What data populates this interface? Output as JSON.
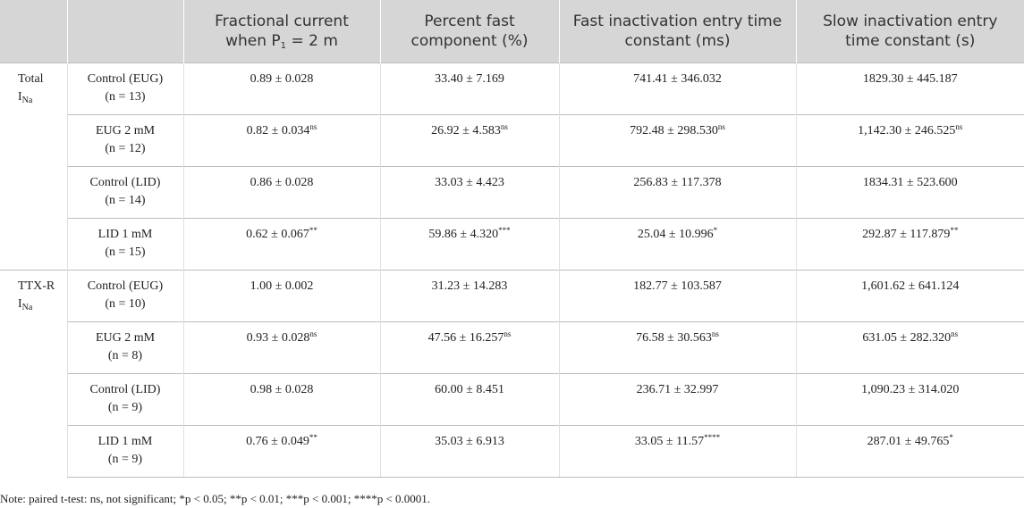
{
  "header": {
    "columns": [
      {
        "text": "Fractional current when P",
        "sub": "1",
        "after": " = 2 m"
      },
      {
        "text": "Percent fast component (%)"
      },
      {
        "text": "Fast inactivation entry time constant (ms)"
      },
      {
        "text": "Slow inactivation entry time constant (s)"
      }
    ]
  },
  "groups": [
    {
      "label": {
        "text": "Total I",
        "sub": "Na"
      },
      "rows": [
        {
          "name": "Control (EUG)",
          "n": "(n = 13)",
          "cells": [
            {
              "text": "0.89 ± 0.028"
            },
            {
              "text": "33.40 ± 7.169"
            },
            {
              "text": "741.41 ± 346.032"
            },
            {
              "text": "1829.30 ± 445.187"
            }
          ]
        },
        {
          "name": "EUG 2 mM",
          "n": "(n = 12)",
          "cells": [
            {
              "text": "0.82 ± 0.034",
              "sup": "ns"
            },
            {
              "text": "26.92 ± 4.583",
              "sup": "ns"
            },
            {
              "text": "792.48 ± 298.530",
              "sup": "ns"
            },
            {
              "text": "1,142.30 ± 246.525",
              "sup": "ns"
            }
          ]
        },
        {
          "name": "Control (LID)",
          "n": "(n = 14)",
          "cells": [
            {
              "text": "0.86 ± 0.028"
            },
            {
              "text": "33.03 ± 4.423"
            },
            {
              "text": "256.83 ± 117.378"
            },
            {
              "text": "1834.31 ± 523.600"
            }
          ]
        },
        {
          "name": "LID 1 mM",
          "n": "(n = 15)",
          "cells": [
            {
              "text": "0.62 ± 0.067",
              "sup": "**"
            },
            {
              "text": "59.86 ± 4.320",
              "sup": "***"
            },
            {
              "text": "25.04 ± 10.996",
              "sup": "*"
            },
            {
              "text": "292.87 ± 117.879",
              "sup": "**"
            }
          ]
        }
      ]
    },
    {
      "label": {
        "text": "TTX-R I",
        "sub": "Na"
      },
      "rows": [
        {
          "name": "Control (EUG)",
          "n": "(n = 10)",
          "cells": [
            {
              "text": "1.00 ± 0.002"
            },
            {
              "text": "31.23 ± 14.283"
            },
            {
              "text": "182.77 ± 103.587"
            },
            {
              "text": "1,601.62 ± 641.124"
            }
          ]
        },
        {
          "name": "EUG 2 mM",
          "n": "(n = 8)",
          "cells": [
            {
              "text": "0.93 ± 0.028",
              "sup": "ns"
            },
            {
              "text": "47.56 ± 16.257",
              "sup": "ns"
            },
            {
              "text": "76.58 ± 30.563",
              "sup": "ns"
            },
            {
              "text": "631.05 ± 282.320",
              "sup": "ns"
            }
          ]
        },
        {
          "name": "Control (LID)",
          "n": "(n = 9)",
          "cells": [
            {
              "text": "0.98 ± 0.028"
            },
            {
              "text": "60.00 ± 8.451"
            },
            {
              "text": "236.71 ± 32.997"
            },
            {
              "text": "1,090.23 ± 314.020"
            }
          ]
        },
        {
          "name": "LID 1 mM",
          "n": "(n = 9)",
          "cells": [
            {
              "text": "0.76 ± 0.049",
              "sup": "**"
            },
            {
              "text": "35.03 ± 6.913"
            },
            {
              "text": "33.05 ± 11.57",
              "sup": "****"
            },
            {
              "text": "287.01 ± 49.765",
              "sup": "*"
            }
          ]
        }
      ]
    }
  ],
  "note": "Note: paired t-test: ns, not significant; *p < 0.05; **p < 0.01; ***p < 0.001; ****p < 0.0001."
}
